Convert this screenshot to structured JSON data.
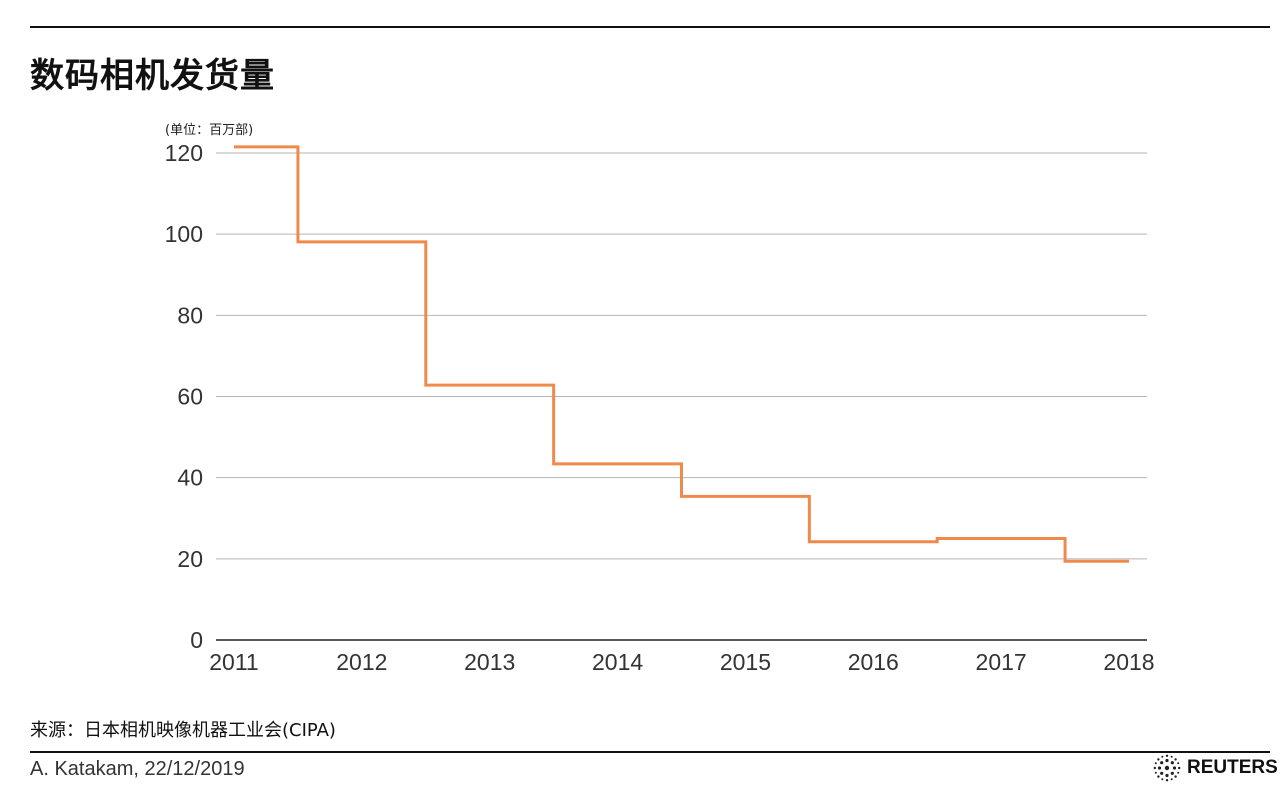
{
  "header": {
    "title": "数码相机发货量"
  },
  "chart_data": {
    "type": "line",
    "step": "middle",
    "title": "数码相机发货量",
    "unit_label": "(单位：百万部)",
    "xlabel": "",
    "ylabel": "",
    "x": [
      2011,
      2012,
      2013,
      2014,
      2015,
      2016,
      2017,
      2018
    ],
    "xticks": [
      "2011",
      "2012",
      "2013",
      "2014",
      "2015",
      "2016",
      "2017",
      "2018"
    ],
    "yticks": [
      "0",
      "20",
      "40",
      "60",
      "80",
      "100",
      "120"
    ],
    "ylim": [
      0,
      120
    ],
    "grid": true,
    "series": [
      {
        "values": [
          121.5,
          98.1,
          62.8,
          43.4,
          35.4,
          24.2,
          25.0,
          19.4
        ]
      }
    ],
    "color": "#ef8a4b"
  },
  "footer": {
    "source": "来源：日本相机映像机器工业会(CIPA)",
    "credit": "A. Katakam, 22/12/2019",
    "logo_text": "REUTERS",
    "logo_icon": "reuters-logo-icon"
  }
}
